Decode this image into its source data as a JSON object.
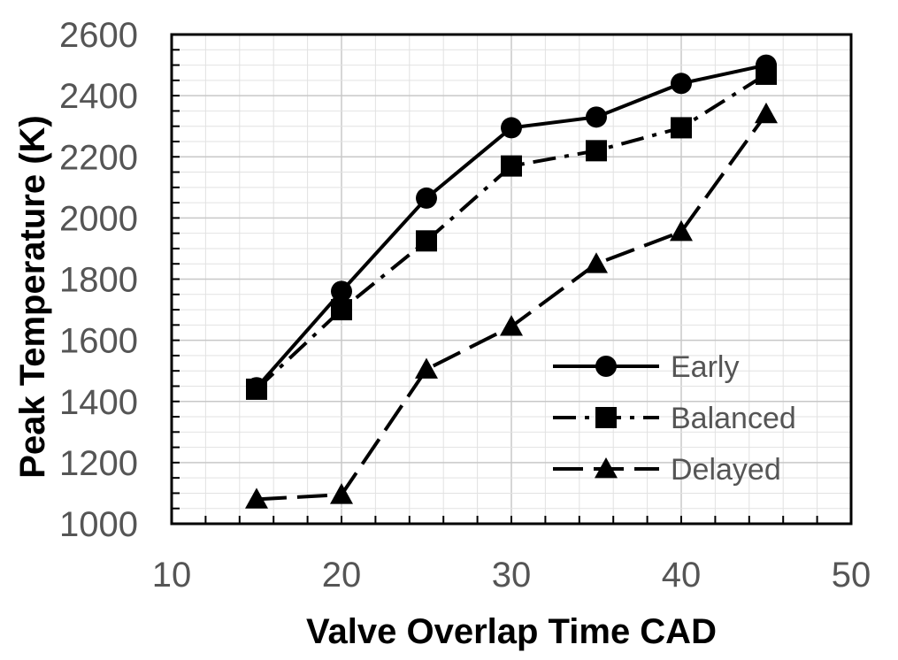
{
  "chart_data": {
    "type": "line",
    "title": "",
    "xlabel": "Valve Overlap Time CAD",
    "ylabel": "Peak Temperature (K)",
    "xlim": [
      10,
      50
    ],
    "ylim": [
      1000,
      2600
    ],
    "xticks": [
      "10",
      "20",
      "30",
      "40",
      "50"
    ],
    "yticks": [
      "1000",
      "1200",
      "1400",
      "1600",
      "1800",
      "2000",
      "2200",
      "2400",
      "2600"
    ],
    "grid": true,
    "legend_position": "bottom-right",
    "series": [
      {
        "name": "Early",
        "marker": "circle",
        "line_style": "solid",
        "x": [
          15,
          20,
          25,
          30,
          35,
          40,
          45
        ],
        "y": [
          1445,
          1760,
          2065,
          2295,
          2330,
          2440,
          2500
        ]
      },
      {
        "name": "Balanced",
        "marker": "square",
        "line_style": "dash-dot",
        "x": [
          15,
          20,
          25,
          30,
          35,
          40,
          45
        ],
        "y": [
          1440,
          1700,
          1925,
          2170,
          2220,
          2295,
          2470
        ]
      },
      {
        "name": "Delayed",
        "marker": "triangle",
        "line_style": "long-dash",
        "x": [
          15,
          20,
          25,
          30,
          35,
          40,
          45
        ],
        "y": [
          1080,
          1095,
          1505,
          1645,
          1850,
          1955,
          2340
        ]
      }
    ]
  }
}
